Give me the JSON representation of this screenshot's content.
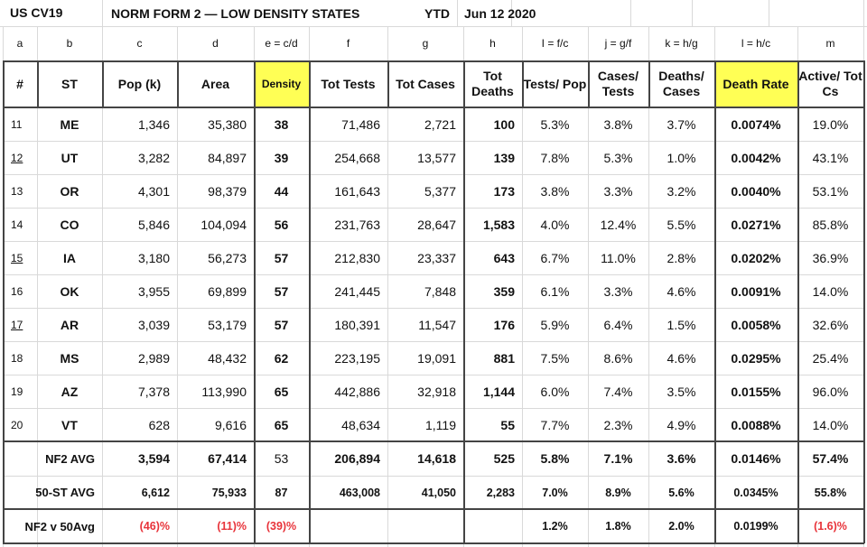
{
  "title_row": {
    "app_label": "US  CV19",
    "title": "NORM FORM 2 — LOW DENSITY STATES",
    "period_label": "YTD",
    "date": "Jun 12 2020"
  },
  "column_letters": [
    "a",
    "b",
    "c",
    "d",
    "e = c/d",
    "f",
    "g",
    "h",
    "I = f/c",
    "j = g/f",
    "k = h/g",
    "l = h/c",
    "m"
  ],
  "headers": [
    "#",
    "ST",
    "Pop (k)",
    "Area",
    "Density",
    "Tot Tests",
    "Tot Cases",
    "Tot Deaths",
    "Tests/ Pop",
    "Cases/ Tests",
    "Deaths/ Cases",
    "Death Rate",
    "Active/ Tot Cs"
  ],
  "highlight_color": "#ffff55",
  "negative_color": "#e8333a",
  "rows": [
    {
      "num": "11",
      "underlined": false,
      "st": "ME",
      "pop": "1,346",
      "area": "35,380",
      "density": "38",
      "tests": "71,486",
      "cases": "2,721",
      "deaths": "100",
      "tests_pop": "5.3%",
      "cases_tests": "3.8%",
      "deaths_cases": "3.7%",
      "death_rate": "0.0074%",
      "active": "19.0%"
    },
    {
      "num": "12",
      "underlined": true,
      "st": "UT",
      "pop": "3,282",
      "area": "84,897",
      "density": "39",
      "tests": "254,668",
      "cases": "13,577",
      "deaths": "139",
      "tests_pop": "7.8%",
      "cases_tests": "5.3%",
      "deaths_cases": "1.0%",
      "death_rate": "0.0042%",
      "active": "43.1%"
    },
    {
      "num": "13",
      "underlined": false,
      "st": "OR",
      "pop": "4,301",
      "area": "98,379",
      "density": "44",
      "tests": "161,643",
      "cases": "5,377",
      "deaths": "173",
      "tests_pop": "3.8%",
      "cases_tests": "3.3%",
      "deaths_cases": "3.2%",
      "death_rate": "0.0040%",
      "active": "53.1%"
    },
    {
      "num": "14",
      "underlined": false,
      "st": "CO",
      "pop": "5,846",
      "area": "104,094",
      "density": "56",
      "tests": "231,763",
      "cases": "28,647",
      "deaths": "1,583",
      "tests_pop": "4.0%",
      "cases_tests": "12.4%",
      "deaths_cases": "5.5%",
      "death_rate": "0.0271%",
      "active": "85.8%"
    },
    {
      "num": "15",
      "underlined": true,
      "st": "IA",
      "pop": "3,180",
      "area": "56,273",
      "density": "57",
      "tests": "212,830",
      "cases": "23,337",
      "deaths": "643",
      "tests_pop": "6.7%",
      "cases_tests": "11.0%",
      "deaths_cases": "2.8%",
      "death_rate": "0.0202%",
      "active": "36.9%"
    },
    {
      "num": "16",
      "underlined": false,
      "st": "OK",
      "pop": "3,955",
      "area": "69,899",
      "density": "57",
      "tests": "241,445",
      "cases": "7,848",
      "deaths": "359",
      "tests_pop": "6.1%",
      "cases_tests": "3.3%",
      "deaths_cases": "4.6%",
      "death_rate": "0.0091%",
      "active": "14.0%"
    },
    {
      "num": "17",
      "underlined": true,
      "st": "AR",
      "pop": "3,039",
      "area": "53,179",
      "density": "57",
      "tests": "180,391",
      "cases": "11,547",
      "deaths": "176",
      "tests_pop": "5.9%",
      "cases_tests": "6.4%",
      "deaths_cases": "1.5%",
      "death_rate": "0.0058%",
      "active": "32.6%"
    },
    {
      "num": "18",
      "underlined": false,
      "st": "MS",
      "pop": "2,989",
      "area": "48,432",
      "density": "62",
      "tests": "223,195",
      "cases": "19,091",
      "deaths": "881",
      "tests_pop": "7.5%",
      "cases_tests": "8.6%",
      "deaths_cases": "4.6%",
      "death_rate": "0.0295%",
      "active": "25.4%"
    },
    {
      "num": "19",
      "underlined": false,
      "st": "AZ",
      "pop": "7,378",
      "area": "113,990",
      "density": "65",
      "tests": "442,886",
      "cases": "32,918",
      "deaths": "1,144",
      "tests_pop": "6.0%",
      "cases_tests": "7.4%",
      "deaths_cases": "3.5%",
      "death_rate": "0.0155%",
      "active": "96.0%"
    },
    {
      "num": "20",
      "underlined": false,
      "st": "VT",
      "pop": "628",
      "area": "9,616",
      "density": "65",
      "tests": "48,634",
      "cases": "1,119",
      "deaths": "55",
      "tests_pop": "7.7%",
      "cases_tests": "2.3%",
      "deaths_cases": "4.9%",
      "death_rate": "0.0088%",
      "active": "14.0%"
    }
  ],
  "summary": [
    {
      "label": "NF2  AVG",
      "pop": "3,594",
      "area": "67,414",
      "density": "53",
      "tests": "206,894",
      "cases": "14,618",
      "deaths": "525",
      "tests_pop": "5.8%",
      "cases_tests": "7.1%",
      "deaths_cases": "3.6%",
      "death_rate": "0.0146%",
      "active": "57.4%"
    },
    {
      "label": "50-ST AVG",
      "pop": "6,612",
      "area": "75,933",
      "density": "87",
      "tests": "463,008",
      "cases": "41,050",
      "deaths": "2,283",
      "tests_pop": "7.0%",
      "cases_tests": "8.9%",
      "deaths_cases": "5.6%",
      "death_rate": "0.0345%",
      "active": "55.8%"
    },
    {
      "label": "NF2 v 50Avg",
      "pop": "(46)%",
      "area": "(11)%",
      "density": "(39)%",
      "tests": "",
      "cases": "",
      "deaths": "",
      "tests_pop": "1.2%",
      "cases_tests": "1.8%",
      "deaths_cases": "2.0%",
      "death_rate": "0.0199%",
      "active": "(1.6)%"
    }
  ]
}
